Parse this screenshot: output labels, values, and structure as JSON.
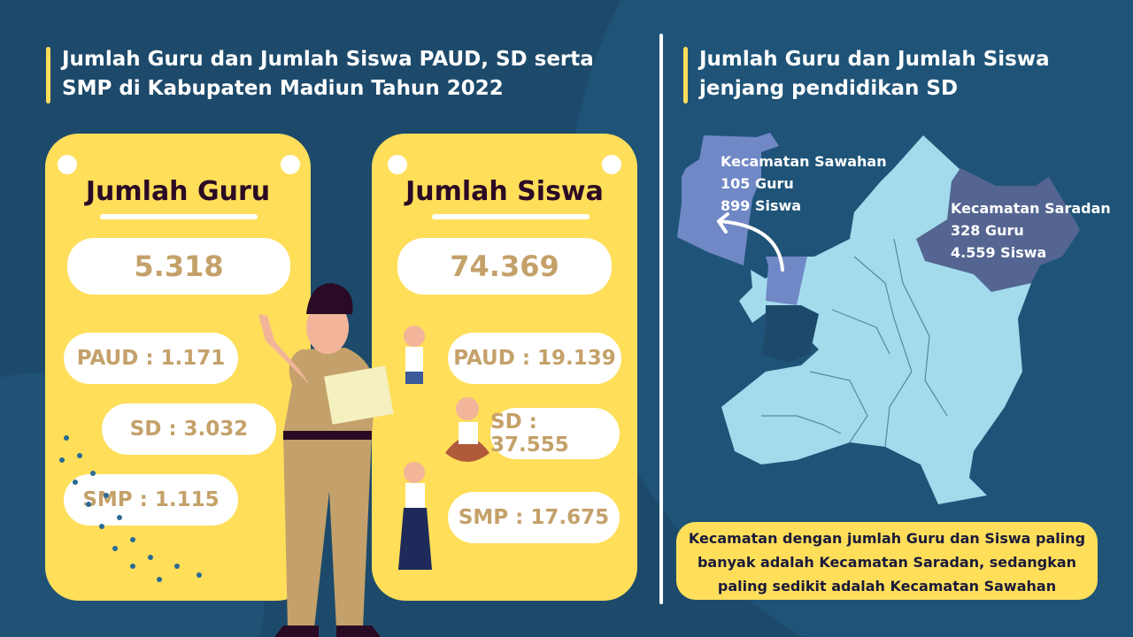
{
  "left": {
    "title": "Jumlah Guru dan Jumlah Siswa PAUD, SD serta SMP di Kabupaten Madiun Tahun 2022",
    "guru": {
      "heading": "Jumlah Guru",
      "total": "5.318",
      "paud": "PAUD : 1.171",
      "sd": "SD : 3.032",
      "smp": "SMP : 1.115"
    },
    "siswa": {
      "heading": "Jumlah Siswa",
      "total": "74.369",
      "paud": "PAUD : 19.139",
      "sd": "SD : 37.555",
      "smp": "SMP : 17.675"
    }
  },
  "right": {
    "title": "Jumlah Guru dan Jumlah Siswa jenjang pendidikan SD",
    "sawahan": {
      "name": "Kecamatan Sawahan",
      "guru": "105 Guru",
      "siswa": "899 Siswa"
    },
    "saradan": {
      "name": "Kecamatan Saradan",
      "guru": "328 Guru",
      "siswa": "4.559 Siswa"
    },
    "note": "Kecamatan dengan jumlah Guru dan Siswa paling banyak adalah Kecamatan Saradan, sedangkan paling sedikit adalah Kecamatan Sawahan"
  },
  "colors": {
    "background": "#1d4a6b",
    "card": "#ffde5a",
    "value": "#c4a16a",
    "map": "#a3dbec",
    "sawahan": "#7088c6",
    "saradan": "#546592"
  }
}
